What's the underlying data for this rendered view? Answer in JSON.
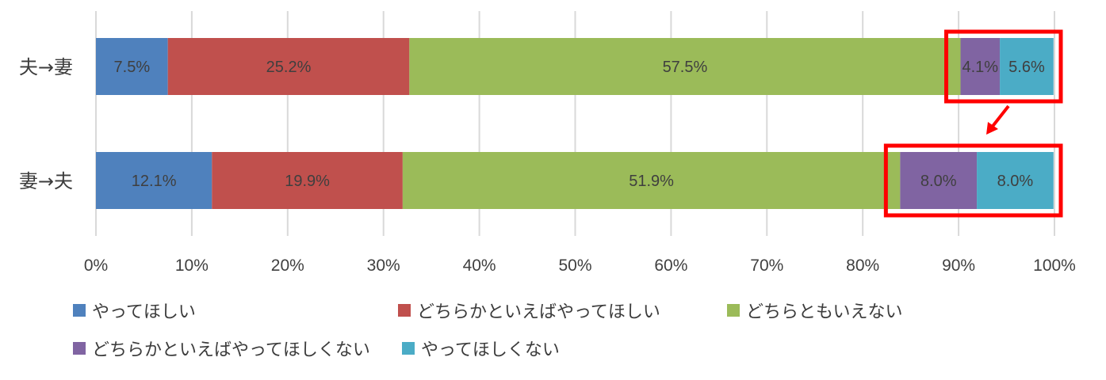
{
  "chart_data": {
    "type": "bar",
    "orientation": "horizontal",
    "stacked": true,
    "percent": true,
    "categories": [
      "夫→妻",
      "妻→夫"
    ],
    "series": [
      {
        "name": "やってほしい",
        "values": [
          7.5,
          12.1
        ],
        "labels": [
          "7.5%",
          "12.1%"
        ],
        "color": "#4f81bd"
      },
      {
        "name": "どちらかといえばやってほしい",
        "values": [
          25.2,
          19.9
        ],
        "labels": [
          "25.2%",
          "19.9%"
        ],
        "color": "#c0504d"
      },
      {
        "name": "どちらともいえない",
        "values": [
          57.5,
          51.9
        ],
        "labels": [
          "57.5%",
          "51.9%"
        ],
        "color": "#9bbb59"
      },
      {
        "name": "どちらかといえばやってほしくない",
        "values": [
          4.1,
          8.0
        ],
        "labels": [
          "4.1%",
          "8.0%"
        ],
        "color": "#8064a2"
      },
      {
        "name": "やってほしくない",
        "values": [
          5.6,
          8.0
        ],
        "labels": [
          "5.6%",
          "8.0%"
        ],
        "color": "#4bacc6"
      }
    ],
    "xlim": [
      0,
      100
    ],
    "x_ticks": [
      "0%",
      "10%",
      "20%",
      "30%",
      "40%",
      "50%",
      "60%",
      "70%",
      "80%",
      "90%",
      "100%"
    ],
    "grid": true,
    "legend_position": "bottom",
    "annotations": "red boxes highlight the last two segments of each bar, with a red arrow pointing from the top box to the bottom box",
    "highlight_color": "#ff0000"
  }
}
